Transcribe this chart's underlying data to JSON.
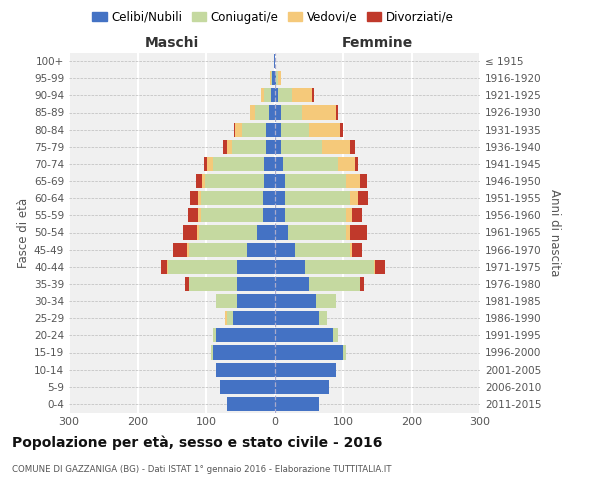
{
  "age_groups": [
    "0-4",
    "5-9",
    "10-14",
    "15-19",
    "20-24",
    "25-29",
    "30-34",
    "35-39",
    "40-44",
    "45-49",
    "50-54",
    "55-59",
    "60-64",
    "65-69",
    "70-74",
    "75-79",
    "80-84",
    "85-89",
    "90-94",
    "95-99",
    "100+"
  ],
  "birth_years": [
    "2011-2015",
    "2006-2010",
    "2001-2005",
    "1996-2000",
    "1991-1995",
    "1986-1990",
    "1981-1985",
    "1976-1980",
    "1971-1975",
    "1966-1970",
    "1961-1965",
    "1956-1960",
    "1951-1955",
    "1946-1950",
    "1941-1945",
    "1936-1940",
    "1931-1935",
    "1926-1930",
    "1921-1925",
    "1916-1920",
    "≤ 1915"
  ],
  "male": {
    "celibi": [
      70,
      80,
      85,
      90,
      85,
      60,
      55,
      55,
      55,
      40,
      25,
      17,
      17,
      16,
      15,
      12,
      12,
      8,
      5,
      3,
      1
    ],
    "coniugati": [
      0,
      0,
      0,
      3,
      5,
      10,
      30,
      70,
      100,
      85,
      85,
      90,
      90,
      85,
      75,
      50,
      35,
      20,
      10,
      2,
      0
    ],
    "vedovi": [
      0,
      0,
      0,
      0,
      0,
      2,
      0,
      0,
      2,
      3,
      3,
      5,
      5,
      5,
      8,
      8,
      10,
      8,
      5,
      2,
      0
    ],
    "divorziati": [
      0,
      0,
      0,
      0,
      0,
      0,
      0,
      5,
      8,
      20,
      20,
      15,
      12,
      8,
      5,
      5,
      2,
      0,
      0,
      0,
      0
    ]
  },
  "female": {
    "nubili": [
      65,
      80,
      90,
      100,
      85,
      65,
      60,
      50,
      45,
      30,
      20,
      15,
      15,
      15,
      12,
      10,
      10,
      10,
      5,
      2,
      1
    ],
    "coniugate": [
      0,
      0,
      0,
      5,
      8,
      12,
      30,
      75,
      100,
      80,
      85,
      90,
      95,
      90,
      80,
      60,
      40,
      30,
      20,
      3,
      0
    ],
    "vedove": [
      0,
      0,
      0,
      0,
      0,
      0,
      0,
      0,
      2,
      3,
      5,
      8,
      12,
      20,
      25,
      40,
      45,
      50,
      30,
      5,
      0
    ],
    "divorziate": [
      0,
      0,
      0,
      0,
      0,
      0,
      0,
      5,
      15,
      15,
      25,
      15,
      15,
      10,
      5,
      8,
      5,
      2,
      2,
      0,
      0
    ]
  },
  "colors": {
    "celibi": "#4472C4",
    "coniugati": "#C5D9A0",
    "vedovi": "#F5C97A",
    "divorziati": "#C0392B"
  },
  "legend_labels": [
    "Celibi/Nubili",
    "Coniugati/e",
    "Vedovi/e",
    "Divorziati/e"
  ],
  "title": "Popolazione per età, sesso e stato civile - 2016",
  "subtitle": "COMUNE DI GAZZANIGA (BG) - Dati ISTAT 1° gennaio 2016 - Elaborazione TUTTITALIA.IT",
  "xlabel_left": "Maschi",
  "xlabel_right": "Femmine",
  "ylabel_left": "Fasce di età",
  "ylabel_right": "Anni di nascita",
  "xlim": 300,
  "bg_color": "#F0F0F0"
}
